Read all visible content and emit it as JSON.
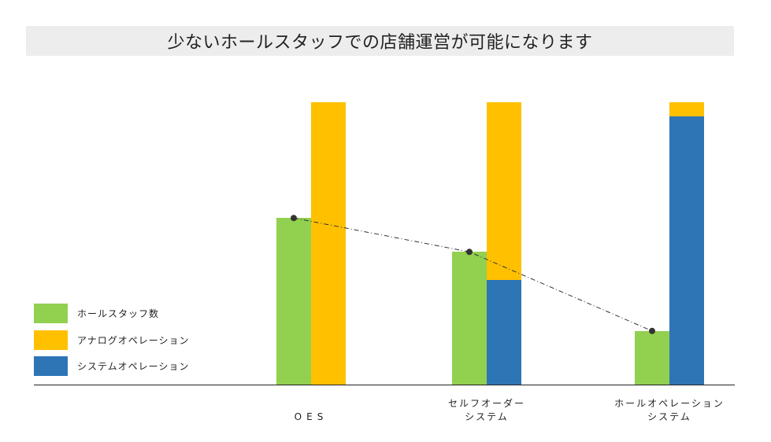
{
  "title": "少ないホールスタッフでの店舗運営が可能になります",
  "colors": {
    "staff": "#92d050",
    "analog": "#ffc000",
    "system": "#2e75b6",
    "title_bg": "#ededed",
    "axis": "#222222",
    "trend": "#333333"
  },
  "legend": [
    {
      "label": "ホールスタッフ数",
      "color": "#92d050"
    },
    {
      "label": "アナログオペレーション",
      "color": "#ffc000"
    },
    {
      "label": "システムオペレーション",
      "color": "#2e75b6"
    }
  ],
  "categories": [
    {
      "line1": "",
      "line2": "OES"
    },
    {
      "line1": "セルフオーダー",
      "line2": "システム"
    },
    {
      "line1": "ホールオペレーション",
      "line2": "システム"
    }
  ],
  "chart_data": {
    "type": "bar",
    "title": "少ないホールスタッフでの店舗運営が可能になります",
    "categories": [
      "OES",
      "セルフオーダーシステム",
      "ホールオペレーションシステム"
    ],
    "series": [
      {
        "name": "ホールスタッフ数",
        "values": [
          59,
          47,
          19
        ],
        "stack": "staff",
        "color": "#92d050"
      },
      {
        "name": "システムオペレーション",
        "values": [
          0,
          37,
          95
        ],
        "stack": "operation",
        "color": "#2e75b6"
      },
      {
        "name": "アナログオペレーション",
        "values": [
          100,
          63,
          5
        ],
        "stack": "operation",
        "color": "#ffc000"
      }
    ],
    "trend_line": {
      "series": "ホールスタッフ数",
      "style": "dash-dot",
      "values": [
        59,
        47,
        19
      ]
    },
    "xlabel": "",
    "ylabel": "",
    "ylim": [
      0,
      100
    ],
    "grid": false,
    "y_axis_visible": false,
    "legend_position": "left"
  }
}
